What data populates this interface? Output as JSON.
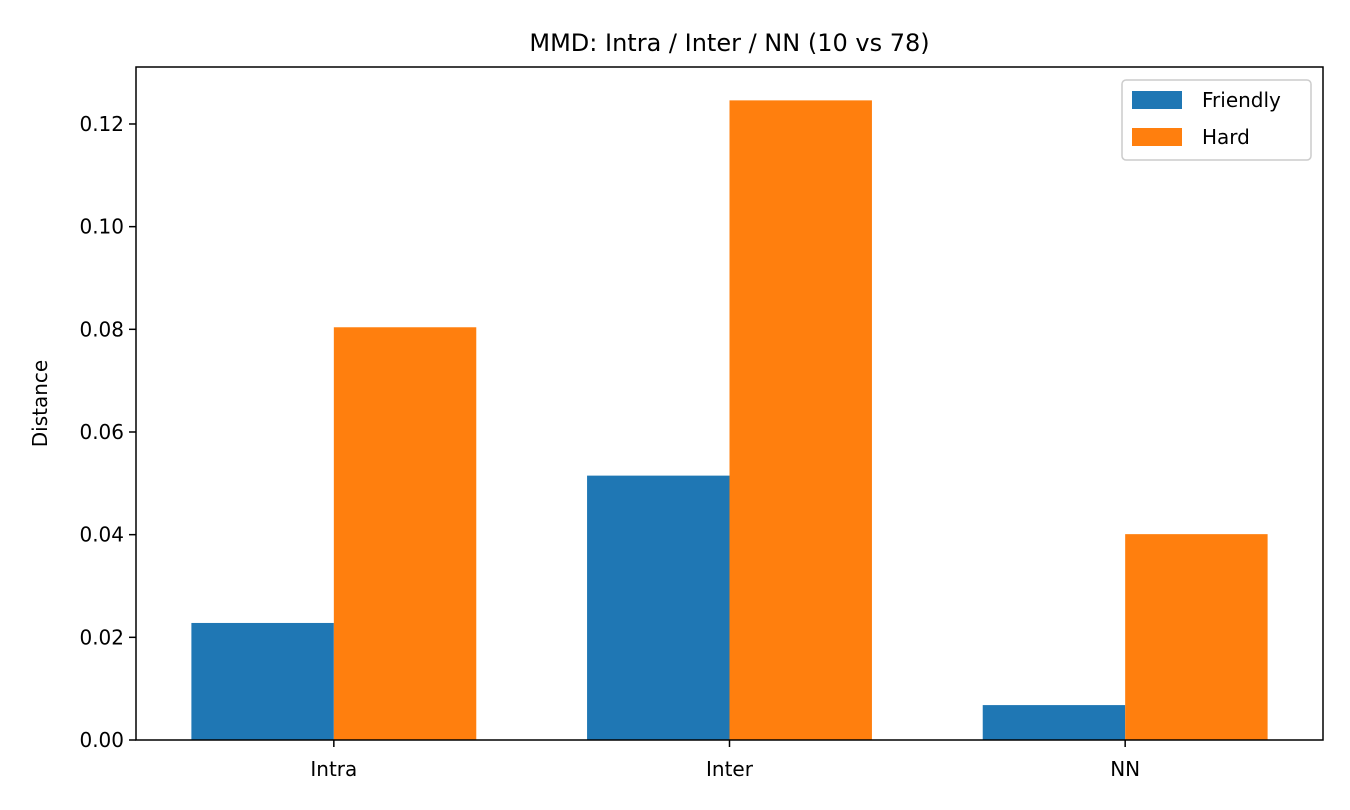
{
  "chart_data": {
    "type": "bar",
    "title": "MMD: Intra / Inter / NN (10 vs 78)",
    "xlabel": "",
    "ylabel": "Distance",
    "categories": [
      "Intra",
      "Inter",
      "NN"
    ],
    "series": [
      {
        "name": "Friendly",
        "color": "#1f77b4",
        "values": [
          0.0228,
          0.0515,
          0.0068
        ]
      },
      {
        "name": "Hard",
        "color": "#ff7f0e",
        "values": [
          0.0804,
          0.1246,
          0.0401
        ]
      }
    ],
    "ylim": [
      0,
      0.1311
    ],
    "yticks": [
      "0.00",
      "0.02",
      "0.04",
      "0.06",
      "0.08",
      "0.10",
      "0.12"
    ],
    "grid": false,
    "legend": "top-right"
  }
}
